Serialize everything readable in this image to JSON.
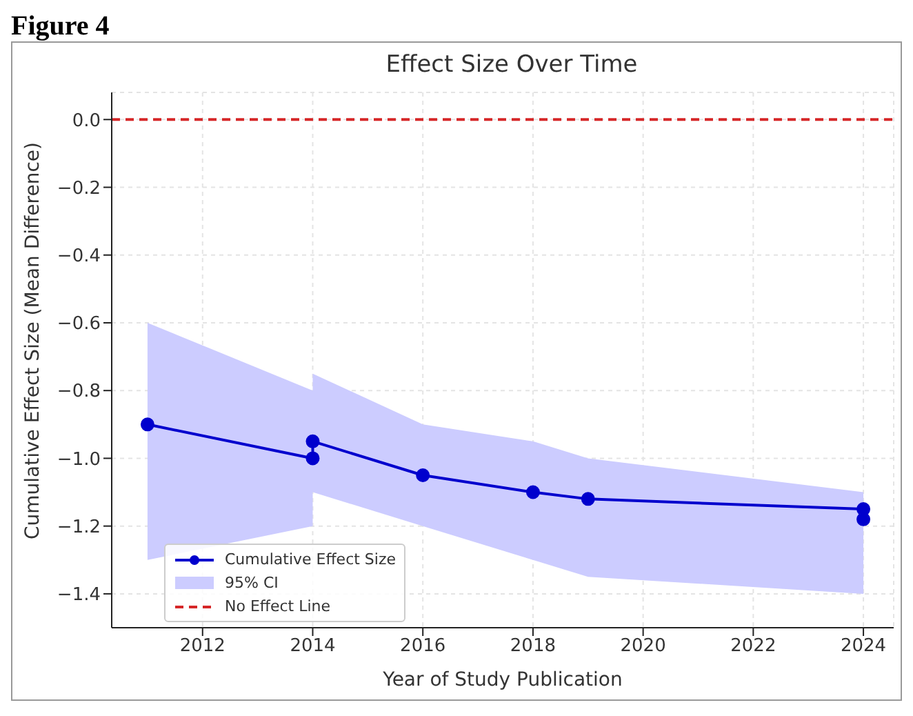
{
  "chart_data": {
    "type": "line",
    "title": "Effect Size Over Time",
    "xlabel": "Year of Study Publication",
    "ylabel": "Cumulative Effect Size (Mean Difference)",
    "annotations": [
      "Figure 4",
      "95% CI"
    ],
    "x": [
      2011,
      2014,
      2014,
      2016,
      2018,
      2019,
      2024,
      2024
    ],
    "series": [
      {
        "name": "Cumulative Effect Size",
        "color": "#0000cd",
        "values": [
          -0.9,
          -1.0,
          -0.95,
          -1.05,
          -1.1,
          -1.12,
          -1.15,
          -1.18
        ],
        "lower": [
          -1.3,
          -1.2,
          -1.1,
          -1.2,
          -1.3,
          -1.35,
          -1.4,
          -1.45
        ],
        "upper": [
          -0.6,
          -0.8,
          -0.75,
          -0.9,
          -0.95,
          -1.0,
          -1.1,
          -1.1
        ]
      }
    ],
    "ref_lines": [
      {
        "axis": "y",
        "value": 0,
        "label": "No Effect Line",
        "color": "#d62728",
        "line_style": "dashed"
      }
    ],
    "xlim": [
      2010.35,
      2024.55
    ],
    "xticks": [
      2012,
      2014,
      2016,
      2018,
      2020,
      2022,
      2024
    ],
    "ylim": [
      -1.5,
      0.08
    ],
    "yticks": [
      {
        "value": 0,
        "label": "0.0"
      },
      {
        "value": -0.2,
        "label": "−0.2"
      },
      {
        "value": -0.4,
        "label": "−0.4"
      },
      {
        "value": -0.6,
        "label": "−0.6"
      },
      {
        "value": -0.8,
        "label": "−0.8"
      },
      {
        "value": -1,
        "label": "−1.0"
      },
      {
        "value": -1.2,
        "label": "−1.2"
      },
      {
        "value": -1.4,
        "label": "−1.4"
      }
    ],
    "grid": true,
    "legend": "bottom left",
    "marker": "circle",
    "line_style": "solid"
  }
}
